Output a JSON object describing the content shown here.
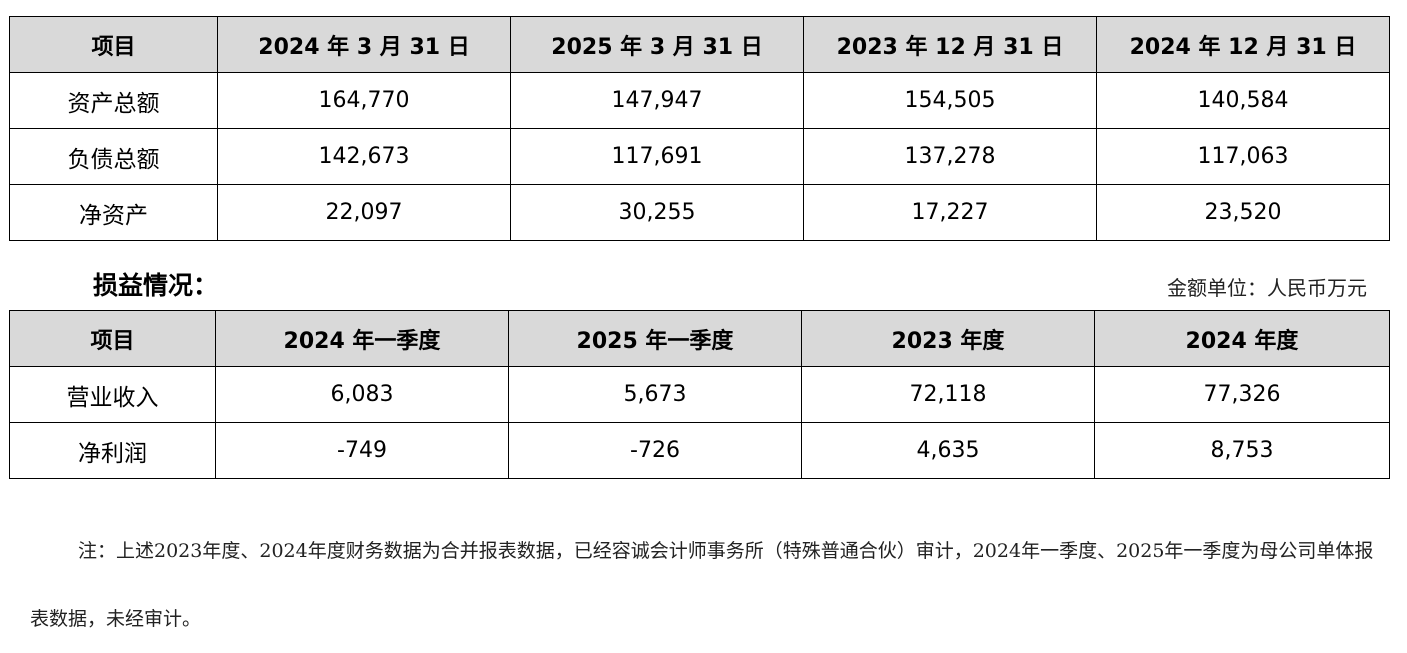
{
  "balance_table": {
    "headers": [
      "项目",
      "2024 年 3 月 31 日",
      "2025 年 3 月 31 日",
      "2023 年 12 月 31 日",
      "2024 年 12 月 31 日"
    ],
    "rows": [
      {
        "label": "资产总额",
        "values": [
          "164,770",
          "147,947",
          "154,505",
          "140,584"
        ]
      },
      {
        "label": "负债总额",
        "values": [
          "142,673",
          "117,691",
          "137,278",
          "117,063"
        ]
      },
      {
        "label": "净资产",
        "values": [
          "22,097",
          "30,255",
          "17,227",
          "23,520"
        ]
      }
    ]
  },
  "income_section": {
    "title": "损益情况：",
    "unit": "金额单位：人民币万元"
  },
  "income_table": {
    "headers": [
      "项目",
      "2024 年一季度",
      "2025 年一季度",
      "2023 年度",
      "2024 年度"
    ],
    "rows": [
      {
        "label": "营业收入",
        "values": [
          "6,083",
          "5,673",
          "72,118",
          "77,326"
        ]
      },
      {
        "label": "净利润",
        "values": [
          "-749",
          "-726",
          "4,635",
          "8,753"
        ]
      }
    ]
  },
  "footnote": "注：上述2023年度、2024年度财务数据为合并报表数据，已经容诚会计师事务所（特殊普通合伙）审计，2024年一季度、2025年一季度为母公司单体报表数据，未经审计。"
}
